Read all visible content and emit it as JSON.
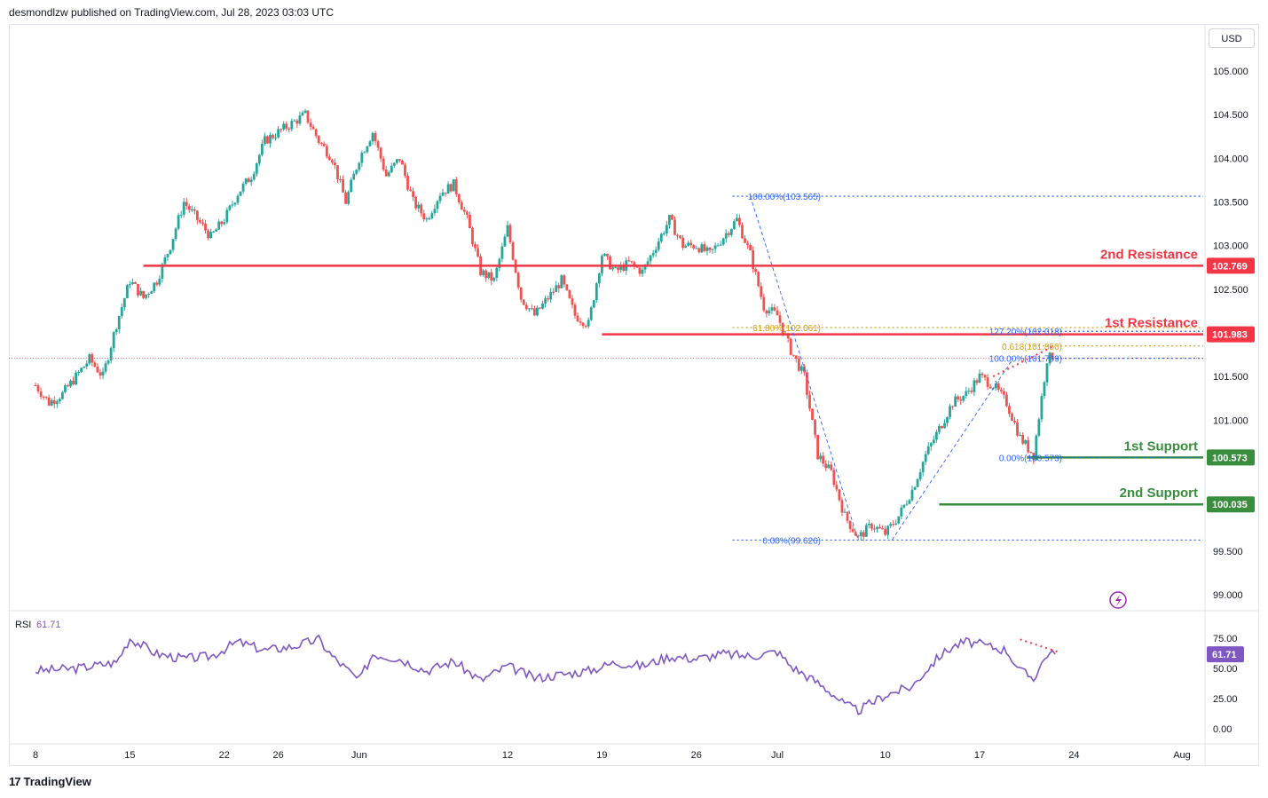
{
  "header": {
    "publisher_line": "desmondlzw published on TradingView.com, Jul 28, 2023 03:03 UTC"
  },
  "toolbar": {
    "currency": "USD"
  },
  "footer": {
    "brand": "TradingView",
    "logo_glyph": "17"
  },
  "colors": {
    "bullish": "#26a69a",
    "bearish": "#ef5350",
    "resistance": "#f23645",
    "support": "#388e3c",
    "fib": "#2962ff",
    "fib_gold": "#d4a017",
    "rsi": "#7e57c2",
    "grid": "#f0f3fa",
    "badge_rsi": "#7e57c2"
  },
  "icons": {
    "alert": "lightning-icon"
  },
  "chart_data": {
    "type": "candlestick",
    "price_axis": {
      "ylim": [
        98.9,
        105.3
      ],
      "ticks": [
        "105.000",
        "104.500",
        "104.000",
        "103.500",
        "103.000",
        "102.500",
        "101.500",
        "101.000",
        "99.500",
        "99.000"
      ],
      "tick_values": [
        105.0,
        104.5,
        104.0,
        103.5,
        103.0,
        102.5,
        101.5,
        101.0,
        99.5,
        99.0
      ]
    },
    "x_axis": {
      "ticks": [
        "8",
        "15",
        "22",
        "26",
        "Jun",
        "12",
        "19",
        "26",
        "Jul",
        "10",
        "17",
        "24",
        "Aug"
      ],
      "tick_days": [
        0,
        7,
        14,
        18,
        24,
        35,
        42,
        49,
        55,
        63,
        70,
        77,
        85
      ]
    },
    "price_path": [
      [
        0,
        101.4
      ],
      [
        1,
        101.2
      ],
      [
        2,
        101.3
      ],
      [
        3,
        101.5
      ],
      [
        4,
        101.7
      ],
      [
        5,
        101.5
      ],
      [
        6,
        102.1
      ],
      [
        7,
        102.6
      ],
      [
        8,
        102.4
      ],
      [
        9,
        102.6
      ],
      [
        10,
        103.0
      ],
      [
        11,
        103.5
      ],
      [
        12,
        103.3
      ],
      [
        13,
        103.1
      ],
      [
        14,
        103.3
      ],
      [
        15,
        103.6
      ],
      [
        16,
        103.8
      ],
      [
        17,
        104.2
      ],
      [
        18,
        104.3
      ],
      [
        19,
        104.4
      ],
      [
        20,
        104.5
      ],
      [
        21,
        104.2
      ],
      [
        22,
        104.0
      ],
      [
        23,
        103.5
      ],
      [
        24,
        104.0
      ],
      [
        25,
        104.3
      ],
      [
        26,
        103.8
      ],
      [
        27,
        104.0
      ],
      [
        28,
        103.5
      ],
      [
        29,
        103.3
      ],
      [
        30,
        103.6
      ],
      [
        31,
        103.7
      ],
      [
        32,
        103.3
      ],
      [
        33,
        102.7
      ],
      [
        34,
        102.6
      ],
      [
        35,
        103.2
      ],
      [
        36,
        102.4
      ],
      [
        37,
        102.2
      ],
      [
        38,
        102.4
      ],
      [
        39,
        102.6
      ],
      [
        40,
        102.2
      ],
      [
        41,
        102.1
      ],
      [
        42,
        102.9
      ],
      [
        43,
        102.7
      ],
      [
        44,
        102.8
      ],
      [
        45,
        102.7
      ],
      [
        46,
        103.0
      ],
      [
        47,
        103.3
      ],
      [
        48,
        103.0
      ],
      [
        49,
        103.0
      ],
      [
        50,
        102.9
      ],
      [
        51,
        103.1
      ],
      [
        52,
        103.3
      ],
      [
        53,
        102.9
      ],
      [
        54,
        102.3
      ],
      [
        55,
        102.2
      ],
      [
        56,
        101.8
      ],
      [
        57,
        101.5
      ],
      [
        58,
        100.6
      ],
      [
        59,
        100.4
      ],
      [
        60,
        99.9
      ],
      [
        61,
        99.65
      ],
      [
        62,
        99.8
      ],
      [
        63,
        99.7
      ],
      [
        64,
        99.9
      ],
      [
        65,
        100.2
      ],
      [
        66,
        100.6
      ],
      [
        67,
        100.9
      ],
      [
        68,
        101.2
      ],
      [
        69,
        101.3
      ],
      [
        70,
        101.5
      ],
      [
        71,
        101.4
      ],
      [
        72,
        101.2
      ],
      [
        73,
        100.8
      ],
      [
        74,
        100.6
      ],
      [
        75,
        101.7
      ],
      [
        75.6,
        101.75
      ]
    ],
    "levels": [
      {
        "name": "2nd Resistance",
        "value": 102.769,
        "label": "102.769",
        "color": "#f23645"
      },
      {
        "name": "1st Resistance",
        "value": 101.983,
        "label": "101.983",
        "color": "#f23645"
      },
      {
        "name": "1st Support",
        "value": 100.573,
        "label": "100.573",
        "color": "#388e3c"
      },
      {
        "name": "2nd Support",
        "value": 100.035,
        "label": "100.035",
        "color": "#388e3c"
      }
    ],
    "fib_labels": [
      {
        "text": "100.00%(103.565)",
        "value": 103.565,
        "color": "#2962ff"
      },
      {
        "text": "61.80%(102.061)",
        "value": 102.061,
        "color": "#d4a017"
      },
      {
        "text": "0.00%(99.626)",
        "value": 99.626,
        "color": "#2962ff"
      },
      {
        "text": "127.20%(102.018)",
        "value": 102.018,
        "color": "#2962ff"
      },
      {
        "text": "0.618(101.850)",
        "value": 101.85,
        "color": "#d4a017"
      },
      {
        "text": "100.00%(101.709)",
        "value": 101.709,
        "color": "#2962ff"
      },
      {
        "text": "0.00%(100.573)",
        "value": 100.573,
        "color": "#2962ff"
      }
    ],
    "rsi": {
      "label": "RSI",
      "value": "61.71",
      "value_num": 61.71,
      "ticks": [
        "75.00",
        "50.00",
        "25.00",
        "0.00"
      ],
      "tick_values": [
        75,
        50,
        25,
        0
      ],
      "ylim": [
        -5,
        95
      ],
      "series": [
        [
          0,
          48
        ],
        [
          3,
          50
        ],
        [
          6,
          55
        ],
        [
          7,
          75
        ],
        [
          9,
          62
        ],
        [
          11,
          58
        ],
        [
          13,
          60
        ],
        [
          15,
          72
        ],
        [
          17,
          65
        ],
        [
          19,
          68
        ],
        [
          21,
          74
        ],
        [
          22,
          60
        ],
        [
          24,
          40
        ],
        [
          25,
          62
        ],
        [
          27,
          58
        ],
        [
          29,
          48
        ],
        [
          31,
          56
        ],
        [
          33,
          40
        ],
        [
          35,
          52
        ],
        [
          37,
          42
        ],
        [
          39,
          45
        ],
        [
          41,
          48
        ],
        [
          43,
          55
        ],
        [
          45,
          52
        ],
        [
          47,
          60
        ],
        [
          49,
          58
        ],
        [
          51,
          62
        ],
        [
          53,
          60
        ],
        [
          55,
          64
        ],
        [
          56,
          52
        ],
        [
          57,
          45
        ],
        [
          58,
          38
        ],
        [
          59,
          30
        ],
        [
          60,
          20
        ],
        [
          61,
          15
        ],
        [
          63,
          28
        ],
        [
          65,
          35
        ],
        [
          66,
          48
        ],
        [
          67,
          60
        ],
        [
          68,
          68
        ],
        [
          69,
          72
        ],
        [
          70,
          70
        ],
        [
          72,
          65
        ],
        [
          73,
          48
        ],
        [
          74,
          42
        ],
        [
          75,
          62
        ],
        [
          75.6,
          61.71
        ]
      ]
    }
  }
}
